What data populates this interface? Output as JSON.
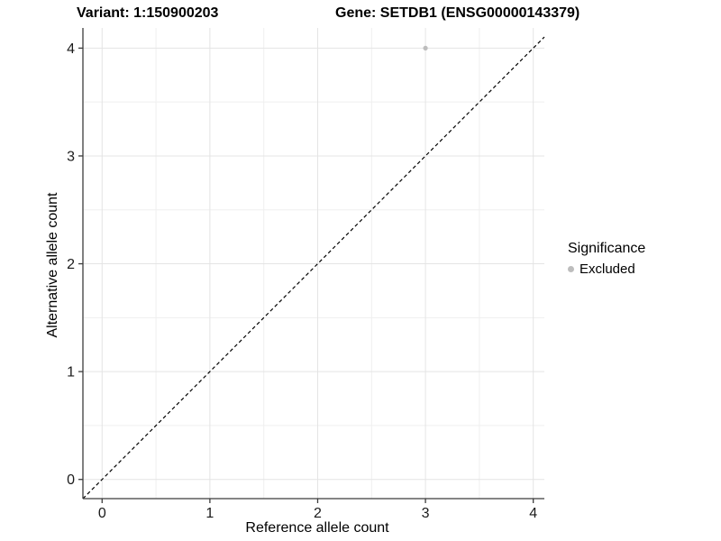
{
  "chart_data": {
    "type": "scatter",
    "titles": {
      "left": "Variant: 1:150900203",
      "right": "Gene: SETDB1 (ENSG00000143379)"
    },
    "xlabel": "Reference allele count",
    "ylabel": "Alternative allele count",
    "xlim": [
      -0.178,
      4.103
    ],
    "ylim": [
      -0.178,
      4.187
    ],
    "x_ticks": [
      0,
      1,
      2,
      3,
      4
    ],
    "y_ticks": [
      0,
      1,
      2,
      3,
      4
    ],
    "x_minor_ticks": [
      0.5,
      1.5,
      2.5,
      3.5
    ],
    "y_minor_ticks": [
      0.5,
      1.5,
      2.5,
      3.5
    ],
    "grid": true,
    "legend": {
      "title": "Significance",
      "position": "right",
      "items": [
        {
          "label": "Excluded",
          "color": "#bdbdbd"
        }
      ]
    },
    "series": [
      {
        "name": "Excluded",
        "color": "#bdbdbd",
        "marker_radius": 2.6,
        "points": [
          [
            3,
            4
          ]
        ]
      }
    ],
    "identity_line": {
      "slope": 1,
      "intercept": 0,
      "style": "dashed",
      "color": "#000000",
      "dash": [
        4,
        3
      ]
    },
    "colors": {
      "background": "#ffffff",
      "grid_major": "#e4e4e4",
      "grid_minor": "#efefef",
      "axis_line": "#3c3c3c",
      "tick_mark": "#3c3c3c",
      "tick_text": "#1a1a1a"
    },
    "tick_font_size": 16
  }
}
